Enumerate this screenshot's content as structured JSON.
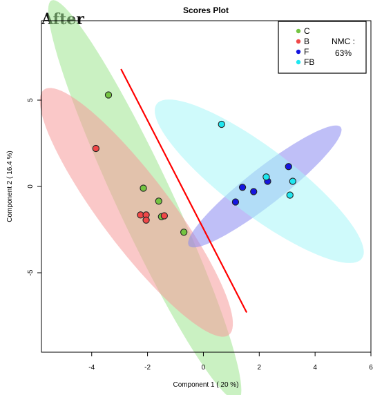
{
  "corner_title": "After",
  "chart_data": {
    "type": "scatter",
    "title": "Scores Plot",
    "xlabel": "Component 1 ( 20 %)",
    "ylabel": "Component 2 ( 16.4 %)",
    "xlim": [
      -5.8,
      6.0
    ],
    "ylim": [
      -9.6,
      9.6
    ],
    "x_ticks": [
      -4,
      -2,
      0,
      2,
      4,
      6
    ],
    "y_ticks": [
      -5,
      0,
      5
    ],
    "series": [
      {
        "name": "C",
        "color": "#74c442",
        "ellipse_color": "#9fe68f",
        "points": [
          [
            -3.4,
            5.3
          ],
          [
            -2.15,
            -0.1
          ],
          [
            -1.6,
            -0.85
          ],
          [
            -1.5,
            -1.75
          ],
          [
            -0.7,
            -2.65
          ]
        ],
        "ellipse": {
          "center": [
            -2.1,
            -0.8
          ],
          "semi_major": 7.9,
          "semi_minor": 1.0,
          "angle_deg": -65
        }
      },
      {
        "name": "B",
        "color": "#f04848",
        "ellipse_color": "#f59a9a",
        "points": [
          [
            -3.85,
            2.2
          ],
          [
            -2.25,
            -1.65
          ],
          [
            -2.05,
            -1.65
          ],
          [
            -2.05,
            -1.95
          ],
          [
            -1.4,
            -1.7
          ]
        ],
        "ellipse": {
          "center": [
            -2.4,
            -1.5
          ],
          "semi_major": 5.5,
          "semi_minor": 1.25,
          "angle_deg": -53
        }
      },
      {
        "name": "F",
        "color": "#1515e0",
        "ellipse_color": "#8b8bf0",
        "points": [
          [
            1.15,
            -0.9
          ],
          [
            1.4,
            -0.05
          ],
          [
            1.8,
            -0.3
          ],
          [
            2.3,
            0.3
          ],
          [
            3.05,
            1.15
          ]
        ],
        "ellipse": {
          "center": [
            2.2,
            0.0
          ],
          "semi_major": 3.45,
          "semi_minor": 0.65,
          "angle_deg": 38
        }
      },
      {
        "name": "FB",
        "color": "#1ee7f0",
        "ellipse_color": "#a8f6f8",
        "points": [
          [
            0.65,
            3.6
          ],
          [
            2.25,
            0.55
          ],
          [
            3.2,
            0.3
          ],
          [
            3.1,
            -0.5
          ]
        ],
        "ellipse": {
          "center": [
            2.0,
            0.3
          ],
          "semi_major": 4.6,
          "semi_minor": 1.2,
          "angle_deg": -37
        }
      }
    ],
    "separator_line": {
      "color": "#ff0000",
      "from": [
        -2.95,
        6.8
      ],
      "to": [
        1.55,
        -7.3
      ]
    },
    "annotation": {
      "line1": "NMC :",
      "line2": "63%"
    },
    "legend_position": "top-right",
    "grid": false
  }
}
